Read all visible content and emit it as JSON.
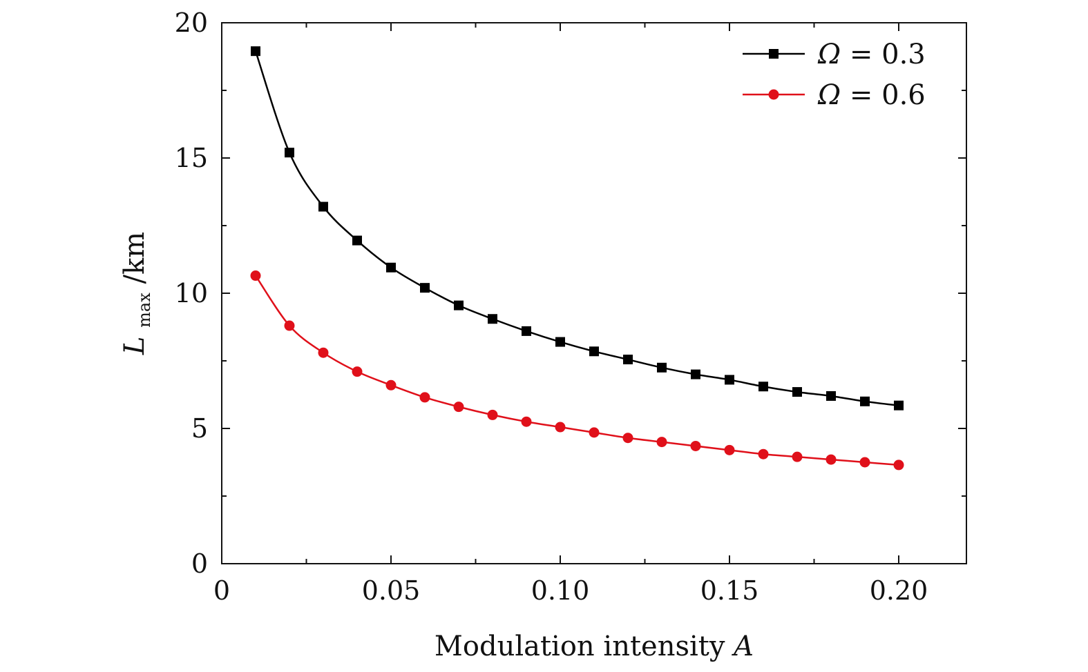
{
  "chart_data": {
    "type": "line",
    "title": "",
    "xlabel": "Modulation intensity",
    "xlabel_var": "A",
    "ylabel_main": "L",
    "ylabel_sub": "max",
    "ylabel_unit": "/km",
    "xlim": [
      0,
      0.22
    ],
    "ylim": [
      0,
      20
    ],
    "x_major_ticks": [
      0,
      0.05,
      0.1,
      0.15,
      0.2
    ],
    "x_tick_labels": [
      "0",
      "0.05",
      "0.10",
      "0.15",
      "0.20"
    ],
    "y_major_ticks": [
      0,
      5,
      10,
      15,
      20
    ],
    "y_tick_labels": [
      "0",
      "5",
      "10",
      "15",
      "20"
    ],
    "grid": false,
    "legend_position": "top-right",
    "x": [
      0.01,
      0.02,
      0.03,
      0.04,
      0.05,
      0.06,
      0.07,
      0.08,
      0.09,
      0.1,
      0.11,
      0.12,
      0.13,
      0.14,
      0.15,
      0.16,
      0.17,
      0.18,
      0.19,
      0.2
    ],
    "series": [
      {
        "name": "Ω = 0.3",
        "name_symbol": "Ω",
        "name_rest": " = 0.3",
        "color": "#000000",
        "marker": "square",
        "values": [
          18.95,
          15.2,
          13.2,
          11.95,
          10.95,
          10.2,
          9.55,
          9.05,
          8.6,
          8.2,
          7.85,
          7.55,
          7.25,
          7.0,
          6.8,
          6.55,
          6.35,
          6.2,
          6.0,
          5.85
        ]
      },
      {
        "name": "Ω = 0.6",
        "name_symbol": "Ω",
        "name_rest": " = 0.6",
        "color": "#e0101a",
        "marker": "circle",
        "values": [
          10.65,
          8.8,
          7.8,
          7.1,
          6.6,
          6.15,
          5.8,
          5.5,
          5.25,
          5.05,
          4.85,
          4.65,
          4.5,
          4.35,
          4.2,
          4.05,
          3.95,
          3.85,
          3.75,
          3.65
        ]
      }
    ]
  }
}
